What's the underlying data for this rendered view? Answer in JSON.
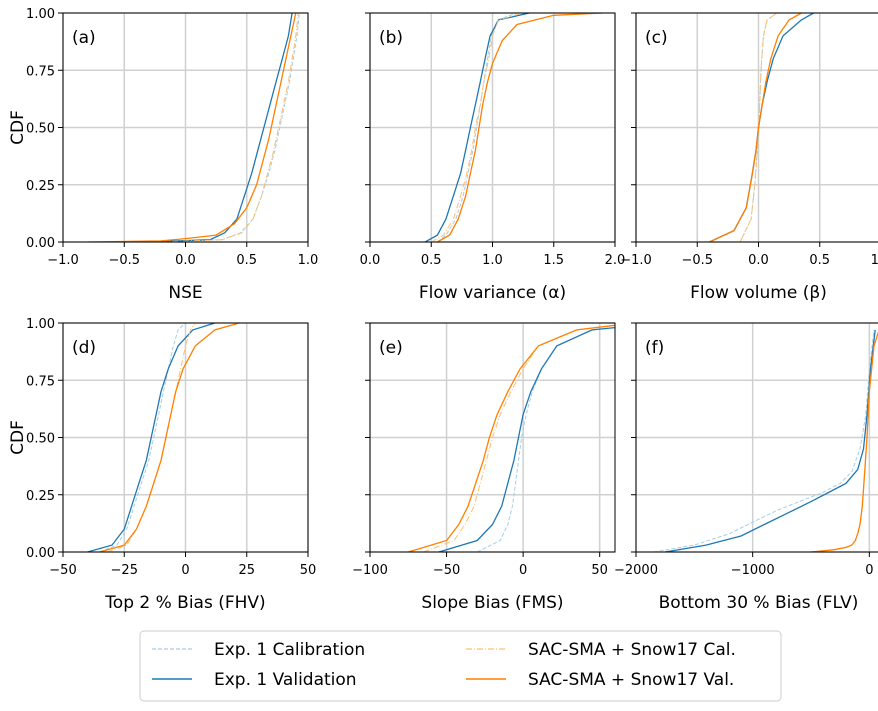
{
  "chart_data": [
    {
      "type": "line",
      "panel_label": "(a)",
      "xlabel": "NSE",
      "ylabel": "CDF",
      "xlim": [
        -1.0,
        1.0
      ],
      "ylim": [
        0,
        1
      ],
      "xticks": [
        -1.0,
        -0.5,
        0.0,
        0.5,
        1.0
      ],
      "xtick_labels": [
        "−1.0",
        "−0.5",
        "0.0",
        "0.5",
        "1.0"
      ],
      "yticks": [
        0,
        0.25,
        0.5,
        0.75,
        1.0
      ],
      "ytick_labels": [
        "0.00",
        "0.25",
        "0.50",
        "0.75",
        "1.00"
      ],
      "grid": true,
      "series": [
        {
          "name": "Exp. 1 Calibration",
          "x": [
            -0.3,
            0.3,
            0.45,
            0.55,
            0.62,
            0.68,
            0.73,
            0.77,
            0.81,
            0.85,
            0.88,
            0.91,
            0.93
          ],
          "y": [
            0,
            0.01,
            0.04,
            0.1,
            0.2,
            0.3,
            0.4,
            0.5,
            0.6,
            0.7,
            0.8,
            0.9,
            1.0
          ]
        },
        {
          "name": "Exp. 1 Validation",
          "x": [
            -0.3,
            0.2,
            0.32,
            0.42,
            0.48,
            0.54,
            0.59,
            0.64,
            0.69,
            0.74,
            0.79,
            0.84,
            0.87
          ],
          "y": [
            0,
            0.01,
            0.04,
            0.1,
            0.2,
            0.3,
            0.4,
            0.5,
            0.6,
            0.7,
            0.8,
            0.9,
            1.0
          ]
        },
        {
          "name": "SAC-SMA + Snow17 Cal.",
          "x": [
            -0.2,
            0.3,
            0.46,
            0.55,
            0.62,
            0.67,
            0.72,
            0.76,
            0.8,
            0.84,
            0.87,
            0.9,
            0.92
          ],
          "y": [
            0,
            0.01,
            0.04,
            0.1,
            0.2,
            0.3,
            0.4,
            0.5,
            0.6,
            0.7,
            0.8,
            0.9,
            1.0
          ]
        },
        {
          "name": "SAC-SMA + Snow17 Val.",
          "x": [
            -0.8,
            -0.2,
            0.0,
            0.25,
            0.4,
            0.5,
            0.58,
            0.63,
            0.68,
            0.72,
            0.76,
            0.8,
            0.84,
            0.9
          ],
          "y": [
            0,
            0.005,
            0.015,
            0.03,
            0.08,
            0.15,
            0.25,
            0.35,
            0.45,
            0.55,
            0.65,
            0.75,
            0.85,
            1.0
          ]
        }
      ]
    },
    {
      "type": "line",
      "panel_label": "(b)",
      "xlabel": "Flow variance (α)",
      "ylabel": "",
      "xlim": [
        0.0,
        2.0
      ],
      "ylim": [
        0,
        1
      ],
      "xticks": [
        0.0,
        0.5,
        1.0,
        1.5,
        2.0
      ],
      "xtick_labels": [
        "0.0",
        "0.5",
        "1.0",
        "1.5",
        "2.0"
      ],
      "yticks": [
        0,
        0.25,
        0.5,
        0.75,
        1.0
      ],
      "ytick_labels": [
        "",
        "",
        "",
        "",
        ""
      ],
      "grid": true,
      "series": [
        {
          "name": "Exp. 1 Calibration",
          "x": [
            0.55,
            0.62,
            0.7,
            0.76,
            0.8,
            0.84,
            0.87,
            0.9,
            0.93,
            0.96,
            0.99,
            1.04,
            1.2
          ],
          "y": [
            0,
            0.03,
            0.1,
            0.2,
            0.3,
            0.4,
            0.5,
            0.6,
            0.7,
            0.8,
            0.9,
            0.97,
            1.0
          ]
        },
        {
          "name": "Exp. 1 Validation",
          "x": [
            0.45,
            0.55,
            0.62,
            0.68,
            0.74,
            0.78,
            0.82,
            0.86,
            0.9,
            0.94,
            0.98,
            1.05,
            1.3
          ],
          "y": [
            0,
            0.03,
            0.1,
            0.2,
            0.3,
            0.4,
            0.5,
            0.6,
            0.7,
            0.8,
            0.9,
            0.97,
            1.0
          ]
        },
        {
          "name": "SAC-SMA + Snow17 Cal.",
          "x": [
            0.5,
            0.6,
            0.68,
            0.74,
            0.79,
            0.83,
            0.86,
            0.9,
            0.93,
            0.97,
            1.0,
            1.05,
            1.25
          ],
          "y": [
            0,
            0.03,
            0.1,
            0.2,
            0.3,
            0.4,
            0.5,
            0.6,
            0.7,
            0.8,
            0.9,
            0.97,
            1.0
          ]
        },
        {
          "name": "SAC-SMA + Snow17 Val.",
          "x": [
            0.55,
            0.65,
            0.72,
            0.78,
            0.82,
            0.86,
            0.89,
            0.92,
            0.96,
            1.0,
            1.08,
            1.2,
            1.5,
            1.9
          ],
          "y": [
            0,
            0.03,
            0.1,
            0.2,
            0.3,
            0.4,
            0.5,
            0.6,
            0.7,
            0.78,
            0.88,
            0.95,
            0.99,
            1.0
          ]
        }
      ]
    },
    {
      "type": "line",
      "panel_label": "(c)",
      "xlabel": "Flow volume (β)",
      "ylabel": "",
      "xlim": [
        -1.0,
        1.0
      ],
      "ylim": [
        0,
        1
      ],
      "xticks": [
        -1.0,
        -0.5,
        0.0,
        0.5,
        1.0
      ],
      "xtick_labels": [
        "−1.0",
        "−0.5",
        "0.0",
        "0.5",
        "1.0"
      ],
      "yticks": [
        0,
        0.25,
        0.5,
        0.75,
        1.0
      ],
      "ytick_labels": [
        "",
        "",
        "",
        "",
        ""
      ],
      "grid": true,
      "series": [
        {
          "name": "Exp. 1 Calibration",
          "x": [
            -0.15,
            -0.06,
            -0.03,
            -0.01,
            0.0,
            0.01,
            0.02,
            0.04,
            0.07,
            0.15
          ],
          "y": [
            0,
            0.1,
            0.25,
            0.4,
            0.5,
            0.6,
            0.75,
            0.9,
            0.97,
            1.0
          ]
        },
        {
          "name": "Exp. 1 Validation",
          "x": [
            -0.4,
            -0.2,
            -0.1,
            -0.05,
            -0.02,
            0.0,
            0.03,
            0.07,
            0.12,
            0.2,
            0.35,
            0.45
          ],
          "y": [
            0,
            0.05,
            0.15,
            0.3,
            0.4,
            0.5,
            0.6,
            0.7,
            0.8,
            0.9,
            0.97,
            1.0
          ]
        },
        {
          "name": "SAC-SMA + Snow17 Cal.",
          "x": [
            -0.15,
            -0.06,
            -0.03,
            -0.01,
            0.0,
            0.01,
            0.02,
            0.04,
            0.07,
            0.15
          ],
          "y": [
            0,
            0.1,
            0.25,
            0.4,
            0.5,
            0.6,
            0.75,
            0.9,
            0.97,
            1.0
          ]
        },
        {
          "name": "SAC-SMA + Snow17 Val.",
          "x": [
            -0.4,
            -0.2,
            -0.1,
            -0.05,
            -0.02,
            0.0,
            0.03,
            0.06,
            0.1,
            0.16,
            0.25,
            0.35
          ],
          "y": [
            0,
            0.05,
            0.15,
            0.3,
            0.4,
            0.5,
            0.6,
            0.7,
            0.8,
            0.9,
            0.97,
            1.0
          ]
        }
      ]
    },
    {
      "type": "line",
      "panel_label": "(d)",
      "xlabel": "Top 2 % Bias (FHV)",
      "ylabel": "CDF",
      "xlim": [
        -50,
        50
      ],
      "ylim": [
        0,
        1
      ],
      "xticks": [
        -50,
        -25,
        0,
        25,
        50
      ],
      "xtick_labels": [
        "−50",
        "−25",
        "0",
        "25",
        "50"
      ],
      "yticks": [
        0,
        0.25,
        0.5,
        0.75,
        1.0
      ],
      "ytick_labels": [
        "0.00",
        "0.25",
        "0.50",
        "0.75",
        "1.00"
      ],
      "grid": true,
      "series": [
        {
          "name": "Exp. 1 Calibration",
          "x": [
            -35,
            -28,
            -24,
            -21,
            -18,
            -15,
            -13,
            -11,
            -9,
            -7,
            -5,
            -3,
            0
          ],
          "y": [
            0,
            0.03,
            0.1,
            0.2,
            0.3,
            0.4,
            0.5,
            0.6,
            0.7,
            0.8,
            0.9,
            0.97,
            1.0
          ]
        },
        {
          "name": "Exp. 1 Validation",
          "x": [
            -40,
            -30,
            -25,
            -22,
            -19,
            -16,
            -14,
            -12,
            -10,
            -7,
            -3,
            3,
            12
          ],
          "y": [
            0,
            0.03,
            0.1,
            0.2,
            0.3,
            0.4,
            0.5,
            0.6,
            0.7,
            0.8,
            0.9,
            0.97,
            1.0
          ]
        },
        {
          "name": "SAC-SMA + Snow17 Cal.",
          "x": [
            -32,
            -24,
            -20,
            -16,
            -13,
            -10,
            -8,
            -6,
            -4,
            -2,
            0,
            2,
            4
          ],
          "y": [
            0,
            0.03,
            0.1,
            0.2,
            0.3,
            0.4,
            0.5,
            0.6,
            0.7,
            0.8,
            0.9,
            0.97,
            1.0
          ]
        },
        {
          "name": "SAC-SMA + Snow17 Val.",
          "x": [
            -35,
            -25,
            -20,
            -16,
            -13,
            -10,
            -8,
            -6,
            -4,
            -1,
            4,
            12,
            22
          ],
          "y": [
            0,
            0.03,
            0.1,
            0.2,
            0.3,
            0.4,
            0.5,
            0.6,
            0.7,
            0.8,
            0.9,
            0.97,
            1.0
          ]
        }
      ]
    },
    {
      "type": "line",
      "panel_label": "(e)",
      "xlabel": "Slope Bias (FMS)",
      "ylabel": "",
      "xlim": [
        -100,
        60
      ],
      "ylim": [
        0,
        1
      ],
      "xticks": [
        -100,
        -50,
        0,
        50
      ],
      "xtick_labels": [
        "−100",
        "−50",
        "0",
        "50"
      ],
      "yticks": [
        0,
        0.25,
        0.5,
        0.75,
        1.0
      ],
      "ytick_labels": [
        "",
        "",
        "",
        "",
        ""
      ],
      "grid": true,
      "series": [
        {
          "name": "Exp. 1 Calibration",
          "x": [
            -30,
            -15,
            -10,
            -7,
            -5,
            -3,
            -1,
            2,
            6,
            12,
            22,
            45,
            60
          ],
          "y": [
            0,
            0.05,
            0.12,
            0.2,
            0.3,
            0.4,
            0.5,
            0.6,
            0.7,
            0.8,
            0.9,
            0.97,
            0.98
          ]
        },
        {
          "name": "Exp. 1 Validation",
          "x": [
            -55,
            -30,
            -20,
            -14,
            -10,
            -6,
            -3,
            0,
            5,
            12,
            22,
            45,
            60
          ],
          "y": [
            0,
            0.05,
            0.12,
            0.2,
            0.3,
            0.4,
            0.5,
            0.6,
            0.7,
            0.8,
            0.9,
            0.97,
            0.98
          ]
        },
        {
          "name": "SAC-SMA + Snow17 Cal.",
          "x": [
            -65,
            -45,
            -38,
            -32,
            -28,
            -24,
            -20,
            -15,
            -8,
            0,
            10,
            35,
            60
          ],
          "y": [
            0,
            0.05,
            0.12,
            0.2,
            0.3,
            0.4,
            0.5,
            0.6,
            0.7,
            0.8,
            0.9,
            0.97,
            0.99
          ]
        },
        {
          "name": "SAC-SMA + Snow17 Val.",
          "x": [
            -75,
            -50,
            -42,
            -36,
            -31,
            -26,
            -22,
            -17,
            -10,
            -2,
            10,
            35,
            60
          ],
          "y": [
            0,
            0.05,
            0.12,
            0.2,
            0.3,
            0.4,
            0.5,
            0.6,
            0.7,
            0.8,
            0.9,
            0.97,
            0.99
          ]
        }
      ]
    },
    {
      "type": "line",
      "panel_label": "(f)",
      "xlabel": "Bottom 30 % Bias (FLV)",
      "ylabel": "",
      "xlim": [
        -2000,
        100
      ],
      "ylim": [
        0,
        1
      ],
      "xticks": [
        -2000,
        -1000,
        0
      ],
      "xtick_labels": [
        "−2000",
        "−1000",
        "0"
      ],
      "yticks": [
        0,
        0.25,
        0.5,
        0.75,
        1.0
      ],
      "ytick_labels": [
        "",
        "",
        "",
        "",
        ""
      ],
      "grid": true,
      "series": [
        {
          "name": "Exp. 1 Calibration",
          "x": [
            -1850,
            -1500,
            -1200,
            -1000,
            -800,
            -600,
            -400,
            -250,
            -150,
            -80,
            -30,
            0,
            40
          ],
          "y": [
            0,
            0.03,
            0.08,
            0.13,
            0.18,
            0.22,
            0.26,
            0.3,
            0.35,
            0.45,
            0.6,
            0.8,
            0.97
          ]
        },
        {
          "name": "Exp. 1 Validation",
          "x": [
            -1750,
            -1400,
            -1100,
            -900,
            -700,
            -500,
            -350,
            -200,
            -100,
            -50,
            -20,
            10,
            50
          ],
          "y": [
            0,
            0.03,
            0.07,
            0.12,
            0.17,
            0.22,
            0.26,
            0.3,
            0.36,
            0.45,
            0.6,
            0.8,
            0.97
          ]
        },
        {
          "name": "SAC-SMA + Snow17 Cal.",
          "x": [
            -500,
            -300,
            -200,
            -150,
            -120,
            -100,
            -80,
            -60,
            -40,
            -20,
            0,
            40,
            90
          ],
          "y": [
            0,
            0.01,
            0.02,
            0.03,
            0.05,
            0.08,
            0.12,
            0.2,
            0.35,
            0.5,
            0.7,
            0.9,
            0.98
          ]
        },
        {
          "name": "SAC-SMA + Snow17 Val.",
          "x": [
            -500,
            -300,
            -200,
            -150,
            -120,
            -100,
            -80,
            -60,
            -40,
            -20,
            0,
            40,
            90
          ],
          "y": [
            0,
            0.01,
            0.02,
            0.03,
            0.05,
            0.08,
            0.12,
            0.2,
            0.35,
            0.5,
            0.7,
            0.9,
            0.98
          ]
        }
      ]
    }
  ],
  "legend": {
    "placement": "bottom-center",
    "entries": [
      {
        "label": "Exp. 1 Calibration",
        "color": "#a6cee3",
        "style": "dashed"
      },
      {
        "label": "Exp. 1 Validation",
        "color": "#1f78b4",
        "style": "solid"
      },
      {
        "label": "SAC-SMA + Snow17 Cal.",
        "color": "#fdbf6f",
        "style": "dashdot"
      },
      {
        "label": "SAC-SMA + Snow17 Val.",
        "color": "#ff7f00",
        "style": "solid"
      }
    ]
  }
}
